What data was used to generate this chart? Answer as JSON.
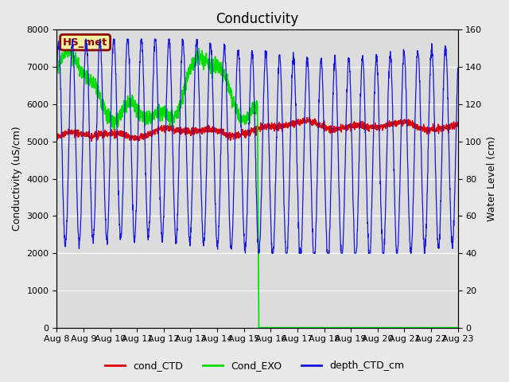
{
  "title": "Conductivity",
  "ylabel_left": "Conductivity (uS/cm)",
  "ylabel_right": "Water Level (cm)",
  "ylim_left": [
    0,
    8000
  ],
  "ylim_right": [
    0,
    160
  ],
  "station_label": "HS_met",
  "outer_bg_color": "#e8e8e8",
  "plot_bg_color": "#e0e0e0",
  "legend_entries": [
    "cond_CTD",
    "Cond_EXO",
    "depth_CTD_cm"
  ],
  "legend_colors": [
    "#dd0000",
    "#00dd00",
    "#0000cc"
  ],
  "x_tick_labels": [
    "Aug 8",
    "Aug 9",
    "Aug 10",
    "Aug 11",
    "Aug 12",
    "Aug 13",
    "Aug 14",
    "Aug 15",
    "Aug 16",
    "Aug 17",
    "Aug 18",
    "Aug 19",
    "Aug 20",
    "Aug 21",
    "Aug 22",
    "Aug 23"
  ],
  "title_fontsize": 12,
  "axis_fontsize": 9,
  "tick_fontsize": 8
}
